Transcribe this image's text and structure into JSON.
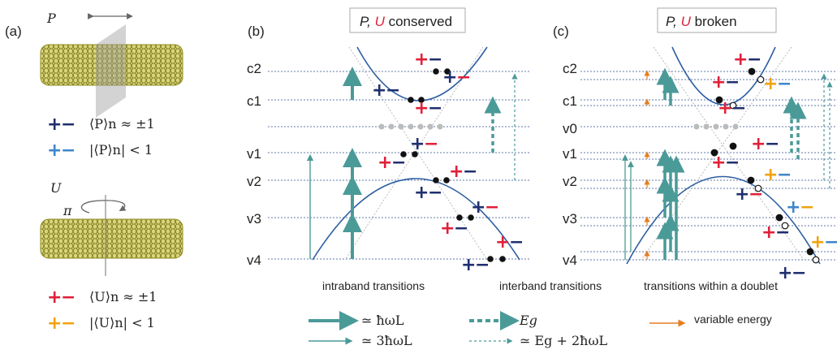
{
  "panel_labels": {
    "a": "(a)",
    "b": "(b)",
    "c": "(c)"
  },
  "panel_a": {
    "p_symbol": "P",
    "u_symbol": "U",
    "pi_symbol": "π",
    "p_legend": [
      {
        "plus_color": "#1f2f6e",
        "minus_color": "#1f2f6e",
        "text": "⟨P⟩n ≈ ±1"
      },
      {
        "plus_color": "#3f86c8",
        "minus_color": "#3f86c8",
        "text": "|⟨P⟩n| < 1"
      }
    ],
    "u_legend": [
      {
        "plus_color": "#e0203a",
        "minus_color": "#e0203a",
        "text": "⟨U⟩n ≈ ±1"
      },
      {
        "plus_color": "#f2a20f",
        "minus_color": "#f2a20f",
        "text": "|⟨U⟩n| < 1"
      }
    ]
  },
  "panel_b": {
    "title_prefix": "P, ",
    "title_u": "U",
    "title_suffix": " conserved",
    "levels": [
      "c2",
      "c1",
      "v1",
      "v2",
      "v3",
      "v4"
    ]
  },
  "panel_c": {
    "title_prefix": "P, ",
    "title_u": "U",
    "title_suffix": " broken",
    "levels": [
      "c2",
      "c1",
      "v0",
      "v1",
      "v2",
      "v3",
      "v4"
    ]
  },
  "legend": {
    "intraband_title": "intraband transitions",
    "intraband_1": "≃ ħωL",
    "intraband_2": "≃ 3ħωL",
    "interband_title": "interband transitions",
    "interband_1": "Eg",
    "interband_2": "≃ Eg + 2ħωL",
    "doublet_title": "transitions within a doublet",
    "variable": "variable energy"
  },
  "colors": {
    "band": "#2e5fa3",
    "arrow_teal": "#4a9a98",
    "arrow_orange": "#e67e22",
    "dashed_line": "#2e4f8c",
    "red": "#e0203a",
    "navy": "#1f2f6e",
    "blue": "#3f86c8",
    "orange": "#f2a20f",
    "nanotube": "#a7a32c"
  }
}
